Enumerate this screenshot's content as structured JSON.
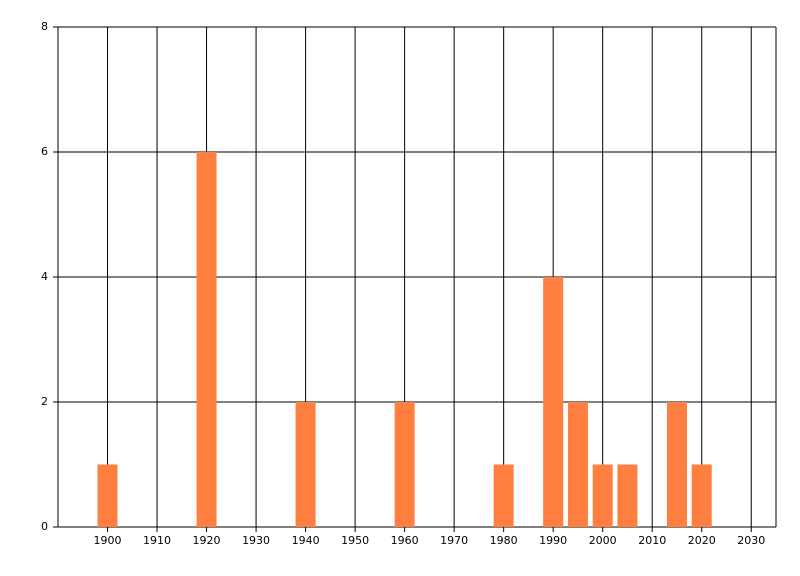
{
  "chart_data": {
    "type": "bar",
    "x": [
      1900,
      1920,
      1940,
      1960,
      1980,
      1990,
      1995,
      2000,
      2005,
      2015,
      2020
    ],
    "values": [
      1,
      6,
      2,
      2,
      1,
      4,
      2,
      1,
      1,
      2,
      1
    ],
    "color": "#ff7f40",
    "xlim": [
      1890,
      2035
    ],
    "xticks": [
      1900,
      1910,
      1920,
      1930,
      1940,
      1950,
      1960,
      1970,
      1980,
      1990,
      2000,
      2010,
      2020,
      2030
    ],
    "ylim": [
      0,
      8
    ],
    "yticks": [
      0,
      2,
      4,
      6,
      8
    ],
    "grid": true
  }
}
